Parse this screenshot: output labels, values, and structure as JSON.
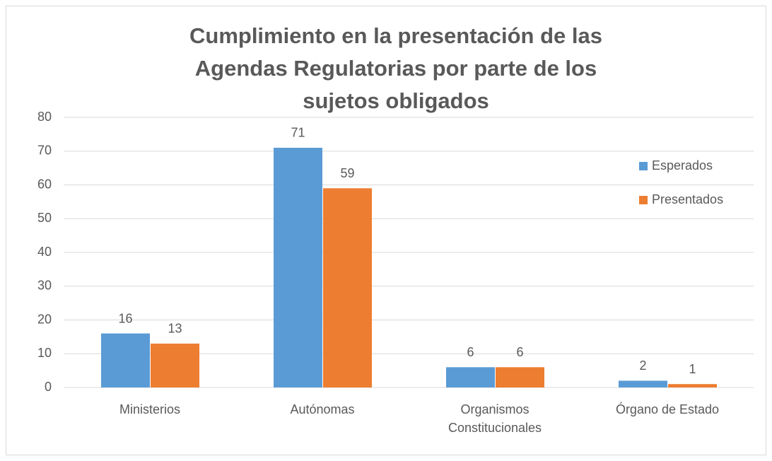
{
  "chart_data": {
    "type": "bar",
    "title": "Cumplimiento en la presentación de las Agendas Regulatorias por parte de los sujetos obligados",
    "categories": [
      "Ministerios",
      "Autónomas",
      "Organismos Constitucionales",
      "Órgano de Estado"
    ],
    "series": [
      {
        "name": "Esperados",
        "color": "#5b9bd5",
        "values": [
          16,
          71,
          6,
          2
        ]
      },
      {
        "name": "Presentados",
        "color": "#ed7d31",
        "values": [
          13,
          59,
          6,
          1
        ]
      }
    ],
    "ylim": [
      0,
      80
    ],
    "yticks": [
      0,
      10,
      20,
      30,
      40,
      50,
      60,
      70,
      80
    ],
    "grid": true,
    "legend": "right"
  }
}
